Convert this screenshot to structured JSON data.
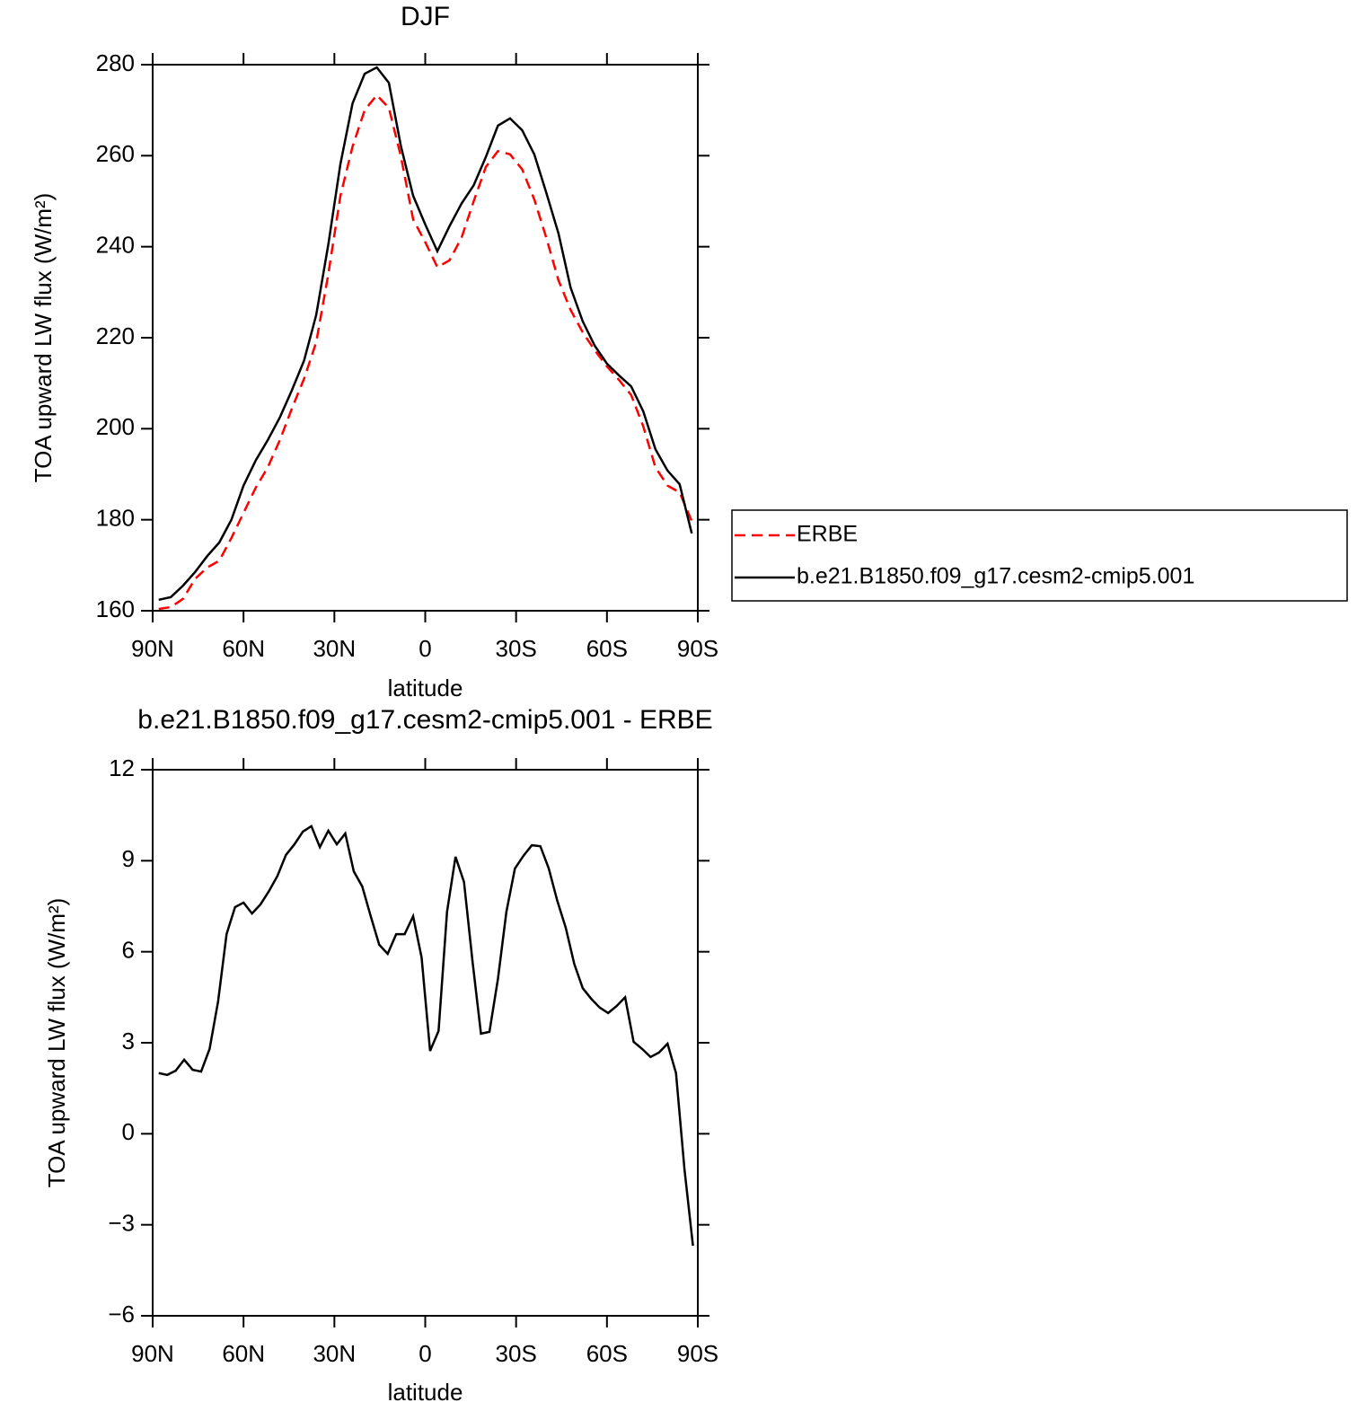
{
  "chart_data": [
    {
      "type": "line",
      "title": "DJF",
      "xlabel": "latitude",
      "ylabel": "TOA upward LW flux (W/m²)",
      "x": [
        88,
        84,
        80,
        76,
        72,
        68,
        64,
        60,
        56,
        52,
        48,
        44,
        40,
        36,
        32,
        28,
        24,
        20,
        16,
        12,
        8,
        4,
        0,
        -4,
        -8,
        -12,
        -16,
        -20,
        -24,
        -28,
        -32,
        -36,
        -40,
        -44,
        -48,
        -52,
        -56,
        -60,
        -64,
        -68,
        -72,
        -76,
        -80,
        -84,
        -88
      ],
      "series": [
        {
          "name": "ERBE",
          "color": "#ff0000",
          "linestyle": "dashed",
          "values": [
            160.4,
            160.8,
            162.6,
            167,
            169.5,
            171,
            176,
            181.5,
            187,
            191.5,
            197.5,
            204.5,
            211,
            219,
            234,
            251.2,
            262,
            270,
            273.3,
            270.5,
            259.7,
            246,
            241,
            235.5,
            237,
            242,
            250,
            257.5,
            261,
            260.3,
            257,
            250.4,
            241.9,
            232.6,
            226.1,
            221.2,
            217.2,
            213.7,
            210.7,
            207.4,
            200.5,
            191.5,
            187.5,
            186,
            179.7
          ]
        },
        {
          "name": "b.e21.B1850.f09_g17.cesm2-cmip5.001",
          "color": "#000000",
          "linestyle": "solid",
          "values": [
            162.4,
            163,
            165.5,
            168.5,
            172,
            175,
            180,
            187.5,
            193,
            197.5,
            202.5,
            208.5,
            215,
            225,
            240.5,
            258.2,
            271.5,
            278,
            279.4,
            276,
            262,
            251.2,
            244.9,
            239,
            244.5,
            249.5,
            253.5,
            259.7,
            266.6,
            268.2,
            265.6,
            260.3,
            251.8,
            242.9,
            231,
            223.6,
            218.2,
            214.3,
            211.7,
            209.3,
            203.8,
            195.5,
            190.8,
            187.8,
            177
          ]
        }
      ],
      "xlim": [
        90,
        -90
      ],
      "xticks": [
        {
          "value": 90,
          "label": "90N"
        },
        {
          "value": 60,
          "label": "60N"
        },
        {
          "value": 30,
          "label": "30N"
        },
        0,
        {
          "value": -30,
          "label": "30S"
        },
        {
          "value": -60,
          "label": "60S"
        },
        {
          "value": -90,
          "label": "90S"
        }
      ],
      "ylim": [
        160,
        280
      ],
      "yticks": [
        160,
        180,
        200,
        220,
        240,
        260,
        280
      ],
      "legend": "right"
    },
    {
      "type": "line",
      "title": "b.e21.B1850.f09_g17.cesm2-cmip5.001 - ERBE",
      "xlabel": "latitude",
      "ylabel": "TOA upward LW flux (W/m²)",
      "x": [
        88,
        85.2,
        82.4,
        79.6,
        76.8,
        74,
        71.2,
        68.4,
        65.6,
        62.8,
        60,
        57.2,
        54.4,
        51.6,
        48.8,
        46,
        43.2,
        40.4,
        37.6,
        34.8,
        32,
        29.2,
        26.4,
        23.6,
        20.8,
        18,
        15.2,
        12.4,
        9.6,
        6.8,
        4,
        1.2,
        -1.6,
        -4.4,
        -7.2,
        -10,
        -12.8,
        -15.6,
        -18.4,
        -21.2,
        -24,
        -26.8,
        -29.6,
        -32.4,
        -35.2,
        -38,
        -40.8,
        -43.6,
        -46.4,
        -49.2,
        -52,
        -54.8,
        -57.6,
        -60.4,
        -63.2,
        -66,
        -68.8,
        -71.6,
        -74.4,
        -77.2,
        -80,
        -82.8,
        -85.6,
        -88.4
      ],
      "series": [
        {
          "color": "#000000",
          "linestyle": "solid",
          "values": [
            2.0,
            1.94,
            2.08,
            2.44,
            2.11,
            2.05,
            2.8,
            4.36,
            6.58,
            7.47,
            7.62,
            7.26,
            7.56,
            8.0,
            8.5,
            9.19,
            9.54,
            9.96,
            10.14,
            9.45,
            9.99,
            9.54,
            9.9,
            8.65,
            8.15,
            7.17,
            6.23,
            5.93,
            6.58,
            6.58,
            7.17,
            5.81,
            2.73,
            3.39,
            7.32,
            9.13,
            8.3,
            5.69,
            3.3,
            3.36,
            5.1,
            7.32,
            8.74,
            9.16,
            9.51,
            9.48,
            8.74,
            7.68,
            6.79,
            5.6,
            4.8,
            4.45,
            4.16,
            3.98,
            4.21,
            4.5,
            3.03,
            2.8,
            2.53,
            2.68,
            2.97,
            2.0,
            -1.17,
            -3.69
          ]
        }
      ],
      "xlim": [
        90,
        -90
      ],
      "xticks": [
        {
          "value": 90,
          "label": "90N"
        },
        {
          "value": 60,
          "label": "60N"
        },
        {
          "value": 30,
          "label": "30N"
        },
        0,
        {
          "value": -30,
          "label": "30S"
        },
        {
          "value": -60,
          "label": "60S"
        },
        {
          "value": -90,
          "label": "90S"
        }
      ],
      "ylim": [
        -6,
        12
      ],
      "yticks": [
        {
          "value": -6,
          "label": "−6"
        },
        {
          "value": -3,
          "label": "−3"
        },
        0,
        3,
        6,
        9,
        12
      ]
    }
  ]
}
